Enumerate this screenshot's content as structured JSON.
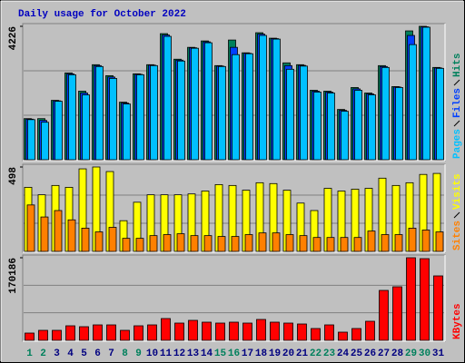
{
  "title": "Daily usage for October 2022",
  "chart_data": [
    {
      "type": "bar",
      "ylim": [
        0,
        4226
      ],
      "yticks": [
        4226
      ],
      "series": [
        {
          "name": "Hits",
          "color": "#00805c",
          "values": [
            1302,
            1302,
            1881,
            2750,
            2171,
            3010,
            2663,
            1823,
            2721,
            3010,
            3994,
            3184,
            3560,
            3763,
            2981,
            3792,
            3387,
            4023,
            3850,
            3068,
            3010,
            2200,
            2171,
            1592,
            2287,
            2113,
            2981,
            2316,
            4081,
            4226,
            2923
          ]
        },
        {
          "name": "Files",
          "color": "#0040ff",
          "values": [
            1286,
            1245,
            1866,
            2721,
            2113,
            2981,
            2620,
            1795,
            2706,
            2995,
            3951,
            3155,
            3546,
            3734,
            2966,
            3560,
            3372,
            3980,
            3836,
            2981,
            2988,
            2171,
            2142,
            1563,
            2244,
            2084,
            2952,
            2302,
            3937,
            4211,
            2908
          ]
        },
        {
          "name": "Pages",
          "color": "#00c0ff",
          "values": [
            1270,
            1187,
            1852,
            2692,
            2055,
            2952,
            2576,
            1766,
            2692,
            2981,
            3908,
            3126,
            3531,
            3705,
            2952,
            3329,
            3358,
            3937,
            3821,
            2866,
            2966,
            2142,
            2113,
            1534,
            2200,
            2055,
            2923,
            2287,
            3647,
            4197,
            2894
          ]
        }
      ]
    },
    {
      "type": "bar",
      "ylim": [
        0,
        498
      ],
      "yticks": [
        498
      ],
      "series": [
        {
          "name": "Visits",
          "color": "#ffff00",
          "values": [
            378,
            334,
            389,
            378,
            487,
            498,
            471,
            181,
            290,
            334,
            334,
            334,
            339,
            356,
            394,
            389,
            361,
            405,
            400,
            361,
            285,
            241,
            372,
            356,
            367,
            372,
            432,
            389,
            405,
            454,
            460
          ]
        },
        {
          "name": "Sites",
          "color": "#ff8000",
          "values": [
            274,
            203,
            241,
            186,
            137,
            115,
            142,
            77,
            77,
            93,
            99,
            104,
            93,
            93,
            88,
            88,
            99,
            109,
            109,
            99,
            93,
            82,
            82,
            82,
            82,
            120,
            99,
            99,
            137,
            126,
            115
          ]
        }
      ]
    },
    {
      "type": "bar",
      "ylim": [
        0,
        170186
      ],
      "yticks": [
        170186
      ],
      "categories": [
        "1",
        "2",
        "3",
        "4",
        "5",
        "6",
        "7",
        "8",
        "9",
        "10",
        "11",
        "12",
        "13",
        "14",
        "15",
        "16",
        "17",
        "18",
        "19",
        "20",
        "21",
        "22",
        "23",
        "24",
        "25",
        "26",
        "27",
        "28",
        "29",
        "30",
        "31"
      ],
      "category_colors": [
        "#00805c",
        "#00805c",
        "#000080",
        "#000080",
        "#000080",
        "#000080",
        "#000080",
        "#00805c",
        "#00805c",
        "#000080",
        "#000080",
        "#000080",
        "#000080",
        "#000080",
        "#00805c",
        "#00805c",
        "#000080",
        "#000080",
        "#000080",
        "#000080",
        "#000080",
        "#00805c",
        "#00805c",
        "#000080",
        "#000080",
        "#000080",
        "#000080",
        "#000080",
        "#00805c",
        "#00805c",
        "#000080"
      ],
      "series": [
        {
          "name": "KBytes",
          "color": "#ff0000",
          "values": [
            14961,
            20571,
            20571,
            29922,
            28052,
            31792,
            31792,
            20571,
            29922,
            31792,
            44883,
            35533,
            41143,
            37403,
            35533,
            37403,
            35533,
            43013,
            37403,
            35533,
            33662,
            24311,
            31792,
            16831,
            24311,
            39273,
            102857,
            110338,
            170186,
            168316,
            132779
          ]
        }
      ]
    }
  ]
}
